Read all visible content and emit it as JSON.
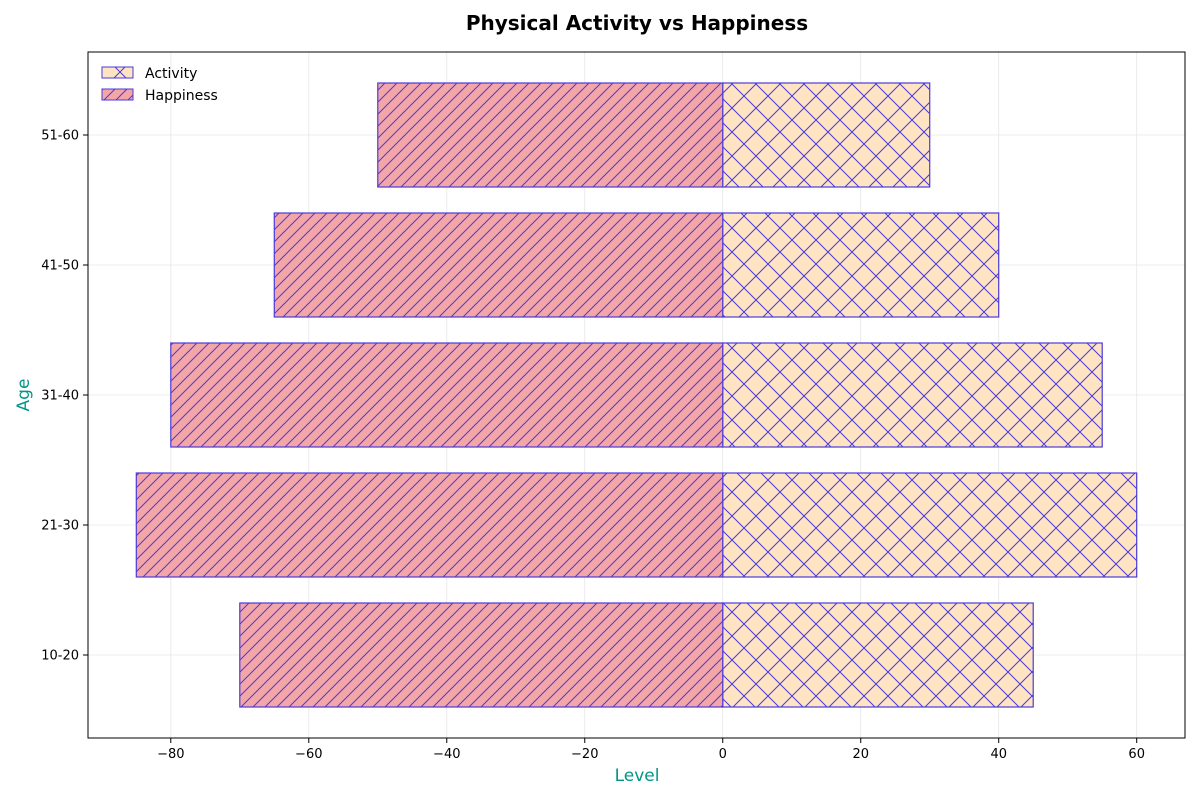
{
  "chart_data": {
    "type": "bar",
    "orientation": "horizontal",
    "title": "Physical Activity vs Happiness",
    "xlabel": "Level",
    "ylabel": "Age",
    "categories": [
      "10-20",
      "21-30",
      "31-40",
      "41-50",
      "51-60"
    ],
    "series": [
      {
        "name": "Activity",
        "values": [
          45,
          60,
          55,
          40,
          30
        ]
      },
      {
        "name": "Happiness",
        "values": [
          -70,
          -85,
          -80,
          -65,
          -50
        ]
      }
    ],
    "xlim": [
      -92,
      67
    ],
    "xticks": [
      -80,
      -60,
      -40,
      -20,
      0,
      20,
      40,
      60
    ],
    "grid": true,
    "legend": "top-left"
  },
  "colors": {
    "activity_fill": "#ffe4c4",
    "happiness_fill": "#f4a6a6",
    "edge": "#4a3bdc",
    "axis_label_color": "#009688"
  }
}
